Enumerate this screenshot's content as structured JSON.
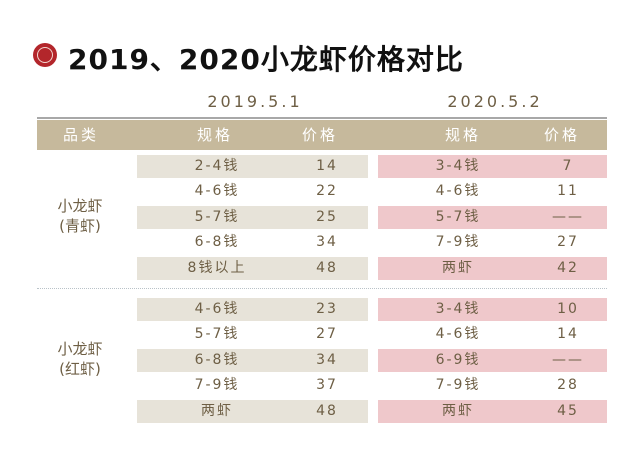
{
  "title": "2019、2020小龙虾价格对比",
  "colors": {
    "accent": "#b3262b",
    "header": "#c6b99c",
    "stripe_2019": "#e7e3d9",
    "stripe_2020": "#efc8cb",
    "text": "#6e5f45"
  },
  "dates": [
    "2019.5.1",
    "2020.5.2"
  ],
  "headers": {
    "category": "品类",
    "spec_2019": "规格",
    "price_2019": "价格",
    "spec_2020": "规格",
    "price_2020": "价格"
  },
  "groups": [
    {
      "category": [
        "小龙虾",
        "(青虾)"
      ],
      "rows": [
        {
          "spec_2019": "2-4钱",
          "price_2019": "14",
          "spec_2020": "3-4钱",
          "price_2020": "7"
        },
        {
          "spec_2019": "4-6钱",
          "price_2019": "22",
          "spec_2020": "4-6钱",
          "price_2020": "11"
        },
        {
          "spec_2019": "5-7钱",
          "price_2019": "25",
          "spec_2020": "5-7钱",
          "price_2020": "——"
        },
        {
          "spec_2019": "6-8钱",
          "price_2019": "34",
          "spec_2020": "7-9钱",
          "price_2020": "27"
        },
        {
          "spec_2019": "8钱以上",
          "price_2019": "48",
          "spec_2020": "两虾",
          "price_2020": "42"
        }
      ]
    },
    {
      "category": [
        "小龙虾",
        "(红虾)"
      ],
      "rows": [
        {
          "spec_2019": "4-6钱",
          "price_2019": "23",
          "spec_2020": "3-4钱",
          "price_2020": "10"
        },
        {
          "spec_2019": "5-7钱",
          "price_2019": "27",
          "spec_2020": "4-6钱",
          "price_2020": "14"
        },
        {
          "spec_2019": "6-8钱",
          "price_2019": "34",
          "spec_2020": "6-9钱",
          "price_2020": "——"
        },
        {
          "spec_2019": "7-9钱",
          "price_2019": "37",
          "spec_2020": "7-9钱",
          "price_2020": "28"
        },
        {
          "spec_2019": "两虾",
          "price_2019": "48",
          "spec_2020": "两虾",
          "price_2020": "45"
        }
      ]
    }
  ]
}
